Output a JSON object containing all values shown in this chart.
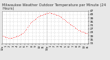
{
  "title": "Milwaukee Weather Outdoor Temperature per Minute (24 Hours)",
  "title_fontsize": 3.8,
  "background_color": "#e8e8e8",
  "plot_bg_color": "#ffffff",
  "line_color": "#ff0000",
  "ylim": [
    11,
    47
  ],
  "yticks": [
    11,
    15,
    19,
    23,
    27,
    31,
    35,
    39,
    43,
    47
  ],
  "ytick_labels": [
    "11",
    "15",
    "19",
    "23",
    "27",
    "31",
    "35",
    "39",
    "43",
    "47"
  ],
  "ylabel_fontsize": 3.2,
  "xlabel_fontsize": 2.8,
  "xtick_labels": [
    "12a",
    "1",
    "2",
    "3",
    "4",
    "5",
    "6",
    "7",
    "8",
    "9",
    "10",
    "11",
    "12p",
    "1",
    "2",
    "3",
    "4",
    "5",
    "6",
    "7",
    "8",
    "9",
    "10",
    "11"
  ],
  "y_values": [
    19.5,
    18.8,
    18.2,
    17.8,
    17.5,
    17.2,
    17.0,
    17.0,
    17.2,
    17.5,
    18.0,
    18.5,
    19.0,
    19.5,
    20.0,
    20.8,
    21.5,
    22.5,
    23.5,
    25.0,
    27.0,
    29.0,
    31.0,
    33.0,
    34.5,
    35.5,
    36.5,
    37.5,
    38.5,
    39.5,
    40.5,
    41.5,
    42.0,
    42.5,
    43.0,
    43.5,
    44.0,
    44.5,
    44.8,
    45.0,
    44.5,
    44.2,
    43.8,
    43.5,
    43.0,
    42.5,
    42.0,
    41.5,
    40.5,
    39.5,
    38.5,
    37.5,
    36.5,
    35.5,
    34.5,
    33.5,
    32.5,
    31.5,
    30.5,
    29.5,
    28.5,
    27.5,
    26.5,
    25.5,
    25.0,
    24.5,
    24.0,
    23.5,
    23.0,
    22.5,
    22.0,
    21.5
  ],
  "grid_color": "#bbbbbb",
  "vline_color": "#999999",
  "dot_size": 1.0,
  "line_width": 0.5
}
